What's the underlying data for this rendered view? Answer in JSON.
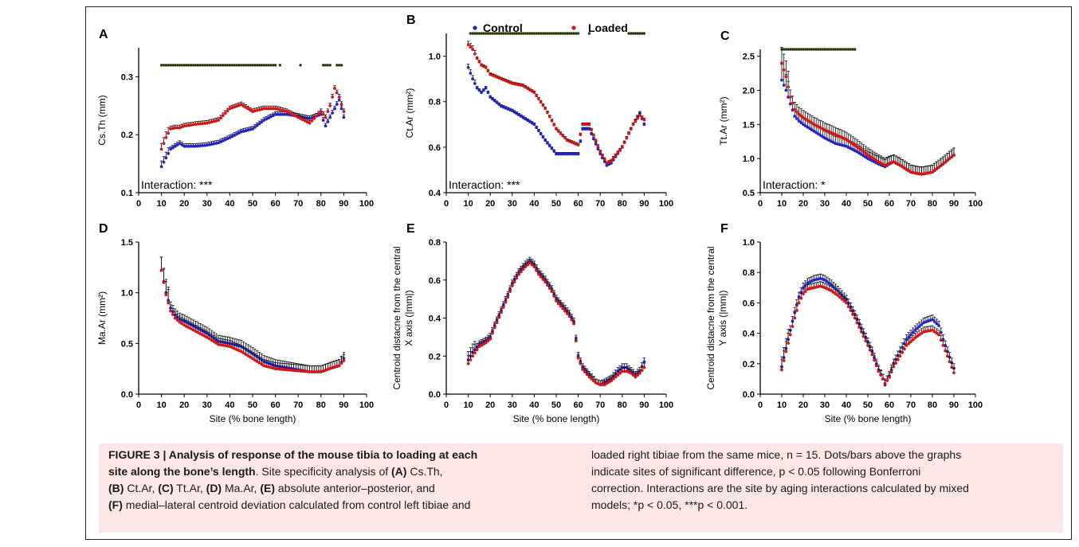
{
  "legend": {
    "control": "Control",
    "loaded": "Loaded"
  },
  "colors": {
    "control": "#2222cc",
    "loaded": "#dd1111",
    "sig": "#2c3a10",
    "err": "#111111"
  },
  "chart_data": [
    {
      "panel": "A",
      "type": "scatter",
      "ylabel": "Cs.Th (mm)",
      "xlabel": "",
      "xlim": [
        0,
        100
      ],
      "ylim": [
        0.1,
        0.35
      ],
      "xticks": [
        0,
        10,
        20,
        30,
        40,
        50,
        60,
        70,
        80,
        90,
        100
      ],
      "yticks": [
        0.1,
        0.2,
        0.3
      ],
      "yticklabels": [
        "0.1",
        "0.2",
        "0.3"
      ],
      "annotation": "Interaction: ***",
      "sig_y": 0.32,
      "sig_sites": [
        [
          10,
          60
        ],
        [
          62,
          62
        ],
        [
          71,
          71
        ],
        [
          81,
          84
        ],
        [
          87,
          89
        ]
      ],
      "series": [
        {
          "name": "Control",
          "x": [
            10,
            12,
            14,
            16,
            18,
            20,
            25,
            30,
            35,
            40,
            45,
            50,
            55,
            60,
            65,
            70,
            75,
            80,
            82,
            84,
            86,
            88,
            90
          ],
          "y": [
            0.145,
            0.16,
            0.175,
            0.18,
            0.185,
            0.18,
            0.18,
            0.182,
            0.186,
            0.195,
            0.205,
            0.21,
            0.225,
            0.235,
            0.235,
            0.232,
            0.228,
            0.235,
            0.215,
            0.23,
            0.245,
            0.26,
            0.23
          ]
        },
        {
          "name": "Loaded",
          "x": [
            10,
            12,
            14,
            16,
            18,
            20,
            25,
            30,
            35,
            40,
            45,
            50,
            55,
            60,
            65,
            70,
            75,
            80,
            82,
            84,
            86,
            88,
            90
          ],
          "y": [
            0.175,
            0.195,
            0.21,
            0.212,
            0.212,
            0.215,
            0.218,
            0.22,
            0.225,
            0.245,
            0.252,
            0.24,
            0.245,
            0.245,
            0.24,
            0.23,
            0.22,
            0.24,
            0.23,
            0.25,
            0.28,
            0.265,
            0.24
          ]
        }
      ]
    },
    {
      "panel": "B",
      "type": "scatter",
      "ylabel": "Ct.Ar (mm²)",
      "xlabel": "",
      "xlim": [
        0,
        100
      ],
      "ylim": [
        0.4,
        1.1
      ],
      "xticks": [
        0,
        10,
        20,
        30,
        40,
        50,
        60,
        70,
        80,
        90,
        100
      ],
      "yticks": [
        0.4,
        0.6,
        0.8,
        1.0
      ],
      "yticklabels": [
        "0.4",
        "0.6",
        "0.8",
        "1.0"
      ],
      "annotation": "Interaction: ***",
      "sig_y": 1.1,
      "sig_sites": [
        [
          11,
          60
        ],
        [
          65,
          65
        ],
        [
          83,
          90
        ]
      ],
      "series": [
        {
          "name": "Control",
          "x": [
            10,
            12,
            14,
            16,
            18,
            20,
            25,
            30,
            35,
            40,
            45,
            50,
            55,
            60,
            62,
            65,
            70,
            73,
            75,
            80,
            85,
            88,
            90
          ],
          "y": [
            0.95,
            0.9,
            0.86,
            0.84,
            0.86,
            0.82,
            0.78,
            0.76,
            0.73,
            0.7,
            0.63,
            0.57,
            0.57,
            0.57,
            0.68,
            0.68,
            0.57,
            0.52,
            0.53,
            0.6,
            0.7,
            0.75,
            0.7
          ]
        },
        {
          "name": "Loaded",
          "x": [
            10,
            12,
            14,
            16,
            18,
            20,
            25,
            30,
            35,
            40,
            45,
            50,
            55,
            60,
            62,
            65,
            70,
            73,
            75,
            80,
            85,
            88,
            90
          ],
          "y": [
            1.05,
            1.03,
            0.99,
            0.96,
            0.95,
            0.92,
            0.9,
            0.88,
            0.87,
            0.84,
            0.77,
            0.68,
            0.63,
            0.61,
            0.7,
            0.7,
            0.58,
            0.53,
            0.54,
            0.6,
            0.7,
            0.74,
            0.72
          ]
        }
      ]
    },
    {
      "panel": "C",
      "type": "scatter",
      "ylabel": "Tt.Ar (mm²)",
      "xlabel": "",
      "xlim": [
        0,
        100
      ],
      "ylim": [
        0.5,
        2.6
      ],
      "xticks": [
        0,
        10,
        20,
        30,
        40,
        50,
        60,
        70,
        80,
        90,
        100
      ],
      "yticks": [
        0.5,
        1.0,
        1.5,
        2.0,
        2.5
      ],
      "yticklabels": [
        "0.5",
        "1.0",
        "1.5",
        "2.0",
        "2.5"
      ],
      "annotation": "Interaction: *",
      "sig_y": 2.6,
      "sig_sites": [
        [
          10,
          44
        ]
      ],
      "series": [
        {
          "name": "Control",
          "x": [
            10,
            12,
            14,
            16,
            18,
            20,
            25,
            30,
            35,
            40,
            45,
            50,
            55,
            58,
            60,
            62,
            65,
            70,
            75,
            80,
            85,
            88,
            90
          ],
          "y": [
            2.15,
            2.0,
            1.8,
            1.62,
            1.55,
            1.5,
            1.4,
            1.3,
            1.22,
            1.18,
            1.1,
            1.0,
            0.92,
            0.88,
            0.92,
            0.95,
            0.9,
            0.8,
            0.77,
            0.8,
            0.92,
            1.0,
            1.05
          ]
        },
        {
          "name": "Loaded",
          "x": [
            10,
            12,
            14,
            16,
            18,
            20,
            25,
            30,
            35,
            40,
            45,
            50,
            55,
            58,
            60,
            62,
            65,
            70,
            75,
            80,
            85,
            88,
            90
          ],
          "y": [
            2.4,
            2.2,
            1.9,
            1.72,
            1.65,
            1.6,
            1.5,
            1.42,
            1.35,
            1.28,
            1.17,
            1.05,
            0.95,
            0.9,
            0.93,
            0.95,
            0.9,
            0.8,
            0.77,
            0.8,
            0.92,
            1.0,
            1.05
          ]
        }
      ]
    },
    {
      "panel": "D",
      "type": "scatter",
      "ylabel": "Ma.Ar (mm²)",
      "xlabel": "Site (% bone length)",
      "xlim": [
        0,
        100
      ],
      "ylim": [
        0.0,
        1.5
      ],
      "xticks": [
        0,
        10,
        20,
        30,
        40,
        50,
        60,
        70,
        80,
        90,
        100
      ],
      "yticks": [
        0.0,
        0.5,
        1.0,
        1.5
      ],
      "yticklabels": [
        "0.0",
        "0.5",
        "1.0",
        "1.5"
      ],
      "annotation": "",
      "sig_y": null,
      "sig_sites": [],
      "series": [
        {
          "name": "Control",
          "x": [
            10,
            12,
            14,
            16,
            18,
            20,
            25,
            30,
            35,
            40,
            45,
            50,
            55,
            60,
            65,
            70,
            75,
            80,
            85,
            88,
            90
          ],
          "y": [
            1.22,
            1.0,
            0.85,
            0.78,
            0.74,
            0.72,
            0.66,
            0.6,
            0.52,
            0.5,
            0.47,
            0.4,
            0.32,
            0.28,
            0.26,
            0.24,
            0.22,
            0.22,
            0.26,
            0.28,
            0.35
          ]
        },
        {
          "name": "Loaded",
          "x": [
            10,
            12,
            14,
            16,
            18,
            20,
            25,
            30,
            35,
            40,
            45,
            50,
            55,
            60,
            65,
            70,
            75,
            80,
            85,
            88,
            90
          ],
          "y": [
            1.22,
            0.98,
            0.82,
            0.75,
            0.71,
            0.68,
            0.62,
            0.56,
            0.49,
            0.47,
            0.42,
            0.35,
            0.28,
            0.25,
            0.24,
            0.23,
            0.22,
            0.22,
            0.26,
            0.28,
            0.33
          ]
        }
      ]
    },
    {
      "panel": "E",
      "type": "scatter",
      "ylabel": "Centroid distacne from the central X axis (|mm|)",
      "xlabel": "Site (% bone length)",
      "xlim": [
        0,
        100
      ],
      "ylim": [
        0.0,
        0.8
      ],
      "xticks": [
        0,
        10,
        20,
        30,
        40,
        50,
        60,
        70,
        80,
        90,
        100
      ],
      "yticks": [
        0.0,
        0.2,
        0.4,
        0.6,
        0.8
      ],
      "yticklabels": [
        "0.0",
        "0.2",
        "0.4",
        "0.6",
        "0.8"
      ],
      "annotation": "",
      "sig_y": null,
      "sig_sites": [],
      "series": [
        {
          "name": "Control",
          "x": [
            10,
            12,
            15,
            18,
            20,
            22,
            25,
            28,
            30,
            33,
            36,
            38,
            40,
            42,
            45,
            48,
            50,
            53,
            56,
            58,
            60,
            62,
            65,
            68,
            70,
            72,
            75,
            78,
            80,
            82,
            84,
            86,
            88,
            90
          ],
          "y": [
            0.18,
            0.22,
            0.26,
            0.28,
            0.3,
            0.36,
            0.44,
            0.52,
            0.58,
            0.64,
            0.68,
            0.7,
            0.68,
            0.64,
            0.6,
            0.55,
            0.5,
            0.46,
            0.42,
            0.38,
            0.2,
            0.14,
            0.1,
            0.06,
            0.05,
            0.06,
            0.08,
            0.12,
            0.14,
            0.14,
            0.12,
            0.1,
            0.12,
            0.17
          ]
        },
        {
          "name": "Loaded",
          "x": [
            10,
            12,
            15,
            18,
            20,
            22,
            25,
            28,
            30,
            33,
            36,
            38,
            40,
            42,
            45,
            48,
            50,
            53,
            56,
            58,
            60,
            62,
            65,
            68,
            70,
            72,
            75,
            78,
            80,
            82,
            84,
            86,
            88,
            90
          ],
          "y": [
            0.16,
            0.2,
            0.25,
            0.27,
            0.29,
            0.35,
            0.43,
            0.51,
            0.57,
            0.63,
            0.67,
            0.69,
            0.67,
            0.63,
            0.59,
            0.54,
            0.49,
            0.45,
            0.41,
            0.37,
            0.19,
            0.13,
            0.09,
            0.06,
            0.05,
            0.05,
            0.07,
            0.1,
            0.12,
            0.12,
            0.11,
            0.09,
            0.11,
            0.14
          ]
        }
      ]
    },
    {
      "panel": "F",
      "type": "scatter",
      "ylabel": "Centroid distacne from the central Y axis (|mm|)",
      "xlabel": "Site (% bone length)",
      "xlim": [
        0,
        100
      ],
      "ylim": [
        0.0,
        1.0
      ],
      "xticks": [
        0,
        10,
        20,
        30,
        40,
        50,
        60,
        70,
        80,
        90,
        100
      ],
      "yticks": [
        0.0,
        0.2,
        0.4,
        0.6,
        0.8,
        1.0
      ],
      "yticklabels": [
        "0.0",
        "0.2",
        "0.4",
        "0.6",
        "0.8",
        "1.0"
      ],
      "annotation": "",
      "sig_y": null,
      "sig_sites": [],
      "series": [
        {
          "name": "Control",
          "x": [
            10,
            12,
            14,
            16,
            18,
            20,
            22,
            25,
            28,
            30,
            33,
            36,
            40,
            44,
            48,
            52,
            55,
            57,
            58,
            60,
            62,
            65,
            68,
            72,
            76,
            80,
            83,
            85,
            87,
            90
          ],
          "y": [
            0.18,
            0.3,
            0.42,
            0.54,
            0.64,
            0.7,
            0.73,
            0.75,
            0.76,
            0.75,
            0.72,
            0.68,
            0.62,
            0.52,
            0.4,
            0.28,
            0.16,
            0.1,
            0.06,
            0.12,
            0.2,
            0.28,
            0.36,
            0.42,
            0.47,
            0.49,
            0.45,
            0.36,
            0.28,
            0.17
          ]
        },
        {
          "name": "Loaded",
          "x": [
            10,
            12,
            14,
            16,
            18,
            20,
            22,
            25,
            28,
            30,
            33,
            36,
            40,
            44,
            48,
            52,
            55,
            57,
            58,
            60,
            62,
            65,
            68,
            72,
            76,
            80,
            83,
            85,
            87,
            90
          ],
          "y": [
            0.16,
            0.28,
            0.39,
            0.5,
            0.6,
            0.66,
            0.69,
            0.7,
            0.71,
            0.7,
            0.68,
            0.65,
            0.6,
            0.5,
            0.38,
            0.26,
            0.15,
            0.1,
            0.07,
            0.11,
            0.18,
            0.25,
            0.32,
            0.37,
            0.41,
            0.42,
            0.39,
            0.32,
            0.25,
            0.14
          ]
        }
      ]
    }
  ],
  "caption": {
    "left_lines": [
      [
        {
          "t": "FIGURE 3 | Analysis of response of the mouse tibia to loading at each",
          "b": true
        }
      ],
      [
        {
          "t": "site along the bone’s length",
          "b": true
        },
        {
          "t": ". Site specificity analysis of ",
          "b": false
        },
        {
          "t": "(A)",
          "b": true
        },
        {
          "t": " Cs.Th,",
          "b": false
        }
      ],
      [
        {
          "t": "(B)",
          "b": true
        },
        {
          "t": " Ct.Ar, ",
          "b": false
        },
        {
          "t": "(C)",
          "b": true
        },
        {
          "t": " Tt.Ar, ",
          "b": false
        },
        {
          "t": "(D)",
          "b": true
        },
        {
          "t": " Ma.Ar, ",
          "b": false
        },
        {
          "t": "(E)",
          "b": true
        },
        {
          "t": " absolute anterior–posterior, and",
          "b": false
        }
      ],
      [
        {
          "t": "(F)",
          "b": true
        },
        {
          "t": " medial–lateral centroid deviation calculated from control left tibiae and",
          "b": false
        }
      ]
    ],
    "right_lines": [
      [
        {
          "t": "loaded right tibiae from the same mice, n = 15. Dots/bars above the graphs",
          "b": false
        }
      ],
      [
        {
          "t": "indicate sites of significant difference, p < 0.05 following Bonferroni",
          "b": false
        }
      ],
      [
        {
          "t": "correction. Interactions are the site by aging interactions calculated by mixed",
          "b": false
        }
      ],
      [
        {
          "t": "models; *p < 0.05, ***p < 0.001.",
          "b": false
        }
      ]
    ]
  }
}
